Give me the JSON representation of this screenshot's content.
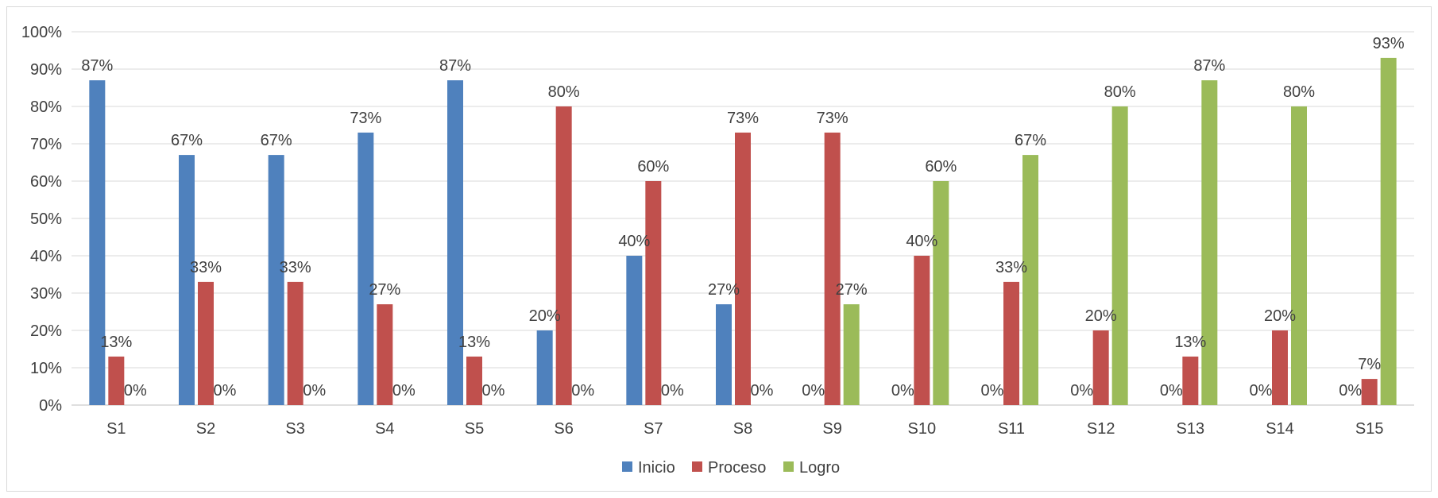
{
  "chart_data": {
    "type": "bar",
    "categories": [
      "S1",
      "S2",
      "S3",
      "S4",
      "S5",
      "S6",
      "S7",
      "S8",
      "S9",
      "S10",
      "S11",
      "S12",
      "S13",
      "S14",
      "S15"
    ],
    "series": [
      {
        "name": "Inicio",
        "color": "#4F81BD",
        "values": [
          87,
          67,
          67,
          73,
          87,
          20,
          40,
          27,
          0,
          0,
          0,
          0,
          0,
          0,
          0
        ],
        "labels": [
          "87%",
          "67%",
          "67%",
          "73%",
          "87%",
          "20%",
          "40%",
          "27%",
          "0%",
          "0%",
          "0%",
          "0%",
          "0%",
          "0%",
          "0%"
        ]
      },
      {
        "name": "Proceso",
        "color": "#C0504D",
        "values": [
          13,
          33,
          33,
          27,
          13,
          80,
          60,
          73,
          73,
          40,
          33,
          20,
          13,
          20,
          7
        ],
        "labels": [
          "13%",
          "33%",
          "33%",
          "27%",
          "13%",
          "80%",
          "60%",
          "73%",
          "73%",
          "40%",
          "33%",
          "20%",
          "13%",
          "20%",
          "7%"
        ]
      },
      {
        "name": "Logro",
        "color": "#9BBB59",
        "values": [
          0,
          0,
          0,
          0,
          0,
          0,
          0,
          0,
          27,
          60,
          67,
          80,
          87,
          80,
          93
        ],
        "labels": [
          "0%",
          "0%",
          "0%",
          "0%",
          "0%",
          "0%",
          "0%",
          "0%",
          "27%",
          "60%",
          "67%",
          "80%",
          "87%",
          "80%",
          "93%"
        ]
      }
    ],
    "ylim": [
      0,
      100
    ],
    "yticks": [
      "0%",
      "10%",
      "20%",
      "30%",
      "40%",
      "50%",
      "60%",
      "70%",
      "80%",
      "90%",
      "100%"
    ],
    "grid": true,
    "legend_position": "bottom"
  }
}
